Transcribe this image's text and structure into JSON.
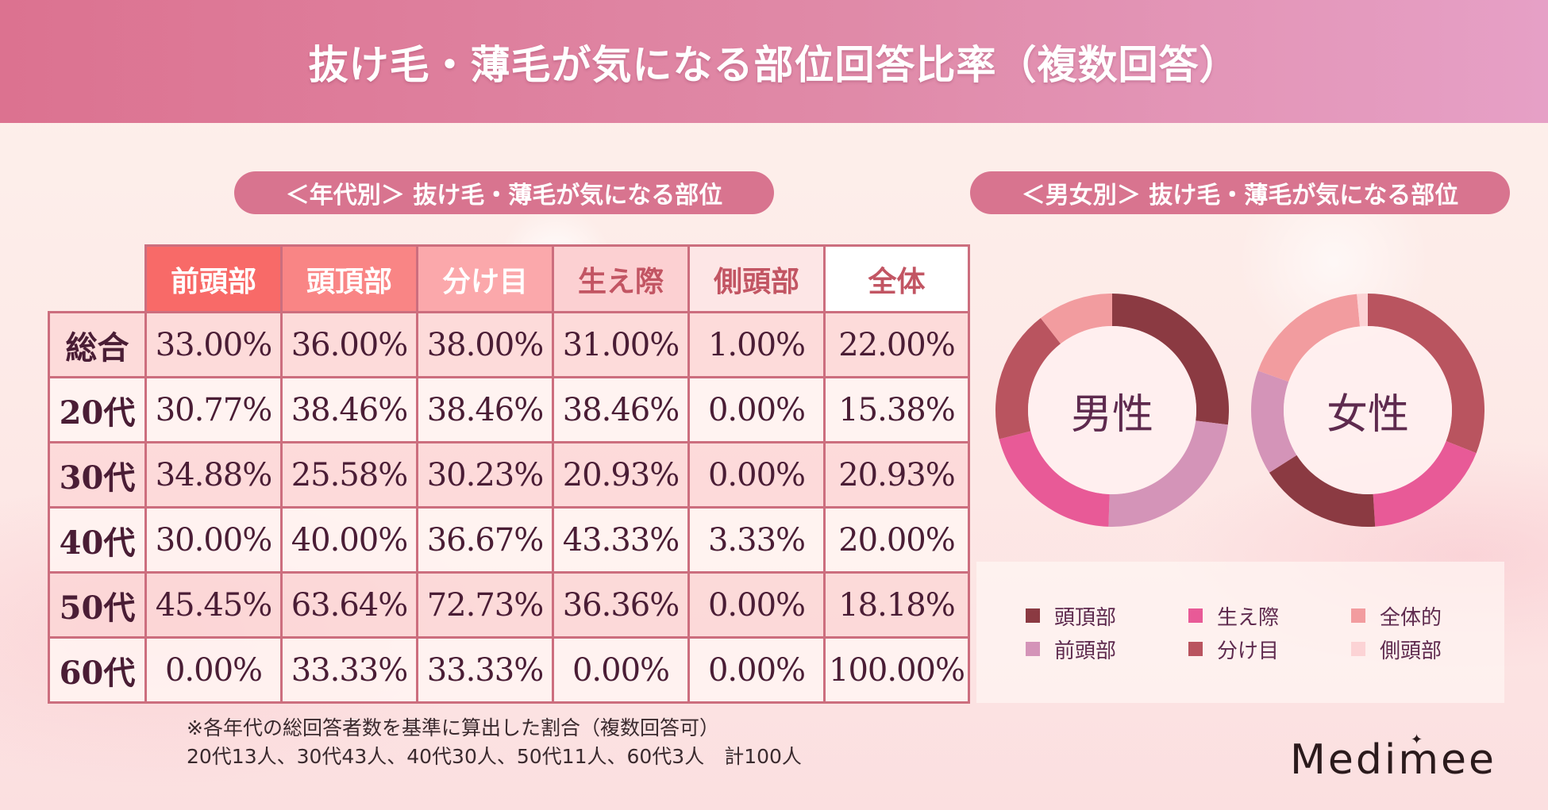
{
  "header": {
    "title": "抜け毛・薄毛が気になる部位回答比率（複数回答）"
  },
  "sections": {
    "age": {
      "title": "＜年代別＞ 抜け毛・薄毛が気になる部位"
    },
    "gender": {
      "title": "＜男女別＞ 抜け毛・薄毛が気になる部位"
    }
  },
  "table": {
    "columns": [
      {
        "label": "前頭部",
        "bg": "#f86a68",
        "color": "#ffffff"
      },
      {
        "label": "頭頂部",
        "bg": "#f98585",
        "color": "#ffffff"
      },
      {
        "label": "分け目",
        "bg": "#fba8ab",
        "color": "#ffffff"
      },
      {
        "label": "生え際",
        "bg": "#fcd0d2",
        "color": "#c25563"
      },
      {
        "label": "側頭部",
        "bg": "#fde6e6",
        "color": "#c25563"
      },
      {
        "label": "全体",
        "bg": "#ffffff",
        "color": "#c25563"
      }
    ],
    "rows": [
      {
        "label": "総合",
        "values": [
          "33.00%",
          "36.00%",
          "38.00%",
          "31.00%",
          "1.00%",
          "22.00%"
        ]
      },
      {
        "label": "20代",
        "values": [
          "30.77%",
          "38.46%",
          "38.46%",
          "38.46%",
          "0.00%",
          "15.38%"
        ]
      },
      {
        "label": "30代",
        "values": [
          "34.88%",
          "25.58%",
          "30.23%",
          "20.93%",
          "0.00%",
          "20.93%"
        ]
      },
      {
        "label": "40代",
        "values": [
          "30.00%",
          "40.00%",
          "36.67%",
          "43.33%",
          "3.33%",
          "20.00%"
        ]
      },
      {
        "label": "50代",
        "values": [
          "45.45%",
          "63.64%",
          "72.73%",
          "36.36%",
          "0.00%",
          "18.18%"
        ]
      },
      {
        "label": "60代",
        "values": [
          "0.00%",
          "33.33%",
          "33.33%",
          "0.00%",
          "0.00%",
          "100.00%"
        ]
      }
    ]
  },
  "note": {
    "line1": "※各年代の総回答者数を基準に算出した割合（複数回答可）",
    "line2": "20代13人、30代43人、40代30人、50代11人、60代3人　計100人"
  },
  "donuts": {
    "male": {
      "label": "男性"
    },
    "female": {
      "label": "女性"
    }
  },
  "legend": [
    {
      "label": "頭頂部",
      "color": "#8b3a42"
    },
    {
      "label": "生え際",
      "color": "#e85a97"
    },
    {
      "label": "全体的",
      "color": "#f29c9f"
    },
    {
      "label": "前頭部",
      "color": "#d494b8"
    },
    {
      "label": "分け目",
      "color": "#b9545f"
    },
    {
      "label": "側頭部",
      "color": "#fcd3d5"
    }
  ],
  "logo": {
    "text": "Medimee"
  },
  "chart_data": [
    {
      "type": "table",
      "title": "＜年代別＞ 抜け毛・薄毛が気になる部位",
      "columns": [
        "前頭部",
        "頭頂部",
        "分け目",
        "生え際",
        "側頭部",
        "全体"
      ],
      "rows": [
        "総合",
        "20代",
        "30代",
        "40代",
        "50代",
        "60代"
      ],
      "values": [
        [
          33.0,
          36.0,
          38.0,
          31.0,
          1.0,
          22.0
        ],
        [
          30.77,
          38.46,
          38.46,
          38.46,
          0.0,
          15.38
        ],
        [
          34.88,
          25.58,
          30.23,
          20.93,
          0.0,
          20.93
        ],
        [
          30.0,
          40.0,
          36.67,
          43.33,
          3.33,
          20.0
        ],
        [
          45.45,
          63.64,
          72.73,
          36.36,
          0.0,
          18.18
        ],
        [
          0.0,
          33.33,
          33.33,
          0.0,
          0.0,
          100.0
        ]
      ],
      "unit": "%",
      "footnote": "各年代の総回答者数を基準に算出した割合（複数回答可）; 20代13人、30代43人、40代30人、50代11人、60代3人 計100人"
    },
    {
      "type": "pie",
      "variant": "donut",
      "title": "男性",
      "start": "12 o'clock, clockwise",
      "categories": [
        "頭頂部",
        "前頭部",
        "生え際",
        "分け目",
        "全体的",
        "側頭部"
      ],
      "values": [
        27,
        23.5,
        20.5,
        18.5,
        10.5,
        0
      ],
      "colors": [
        "#8b3a42",
        "#d494b8",
        "#e85a97",
        "#b9545f",
        "#f29c9f",
        "#fcd3d5"
      ],
      "note": "segment shares estimated from arc angles (no labels shown)"
    },
    {
      "type": "pie",
      "variant": "donut",
      "title": "女性",
      "start": "12 o'clock, clockwise",
      "categories": [
        "分け目",
        "生え際",
        "頭頂部",
        "前頭部",
        "全体的",
        "側頭部"
      ],
      "values": [
        31,
        18,
        17,
        14.5,
        18,
        1.5
      ],
      "colors": [
        "#b9545f",
        "#e85a97",
        "#8b3a42",
        "#d494b8",
        "#f29c9f",
        "#fcd3d5"
      ],
      "note": "segment shares estimated from arc angles (no labels shown)"
    }
  ]
}
